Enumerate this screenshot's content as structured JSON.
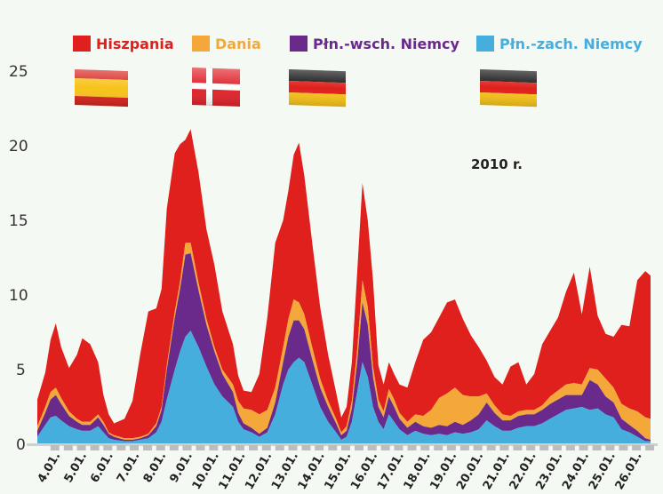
{
  "chart_data": {
    "type": "area",
    "stacked": true,
    "title": "",
    "annotation": "2010 r.",
    "ylim": [
      0,
      25
    ],
    "yticks": [
      "0",
      "5",
      "10",
      "15",
      "20",
      "25"
    ],
    "x_labels": [
      "4.01.",
      "5.01.",
      "6.01.",
      "7.01.",
      "8.01.",
      "9.01.",
      "10.01.",
      "11.01.",
      "12.01.",
      "13.01.",
      "14.01.",
      "15.01.",
      "16.01.",
      "17.01.",
      "18.01.",
      "19.01.",
      "20.01.",
      "21.01.",
      "22.01.",
      "23.01.",
      "24.01.",
      "25.01.",
      "26.01."
    ],
    "x_start": 3.3,
    "x_end": 26.5,
    "x": [
      3.3,
      3.6,
      3.8,
      4.0,
      4.2,
      4.5,
      4.8,
      5.0,
      5.3,
      5.6,
      5.8,
      6.0,
      6.2,
      6.6,
      6.9,
      7.2,
      7.5,
      7.8,
      8.0,
      8.2,
      8.5,
      8.7,
      8.9,
      9.1,
      9.4,
      9.7,
      10.0,
      10.3,
      10.7,
      10.9,
      11.1,
      11.4,
      11.7,
      12.0,
      12.3,
      12.6,
      12.8,
      13.0,
      13.2,
      13.4,
      13.7,
      14.0,
      14.3,
      14.6,
      14.8,
      15.0,
      15.2,
      15.4,
      15.6,
      15.8,
      16.0,
      16.2,
      16.4,
      16.6,
      16.8,
      17.0,
      17.3,
      17.6,
      17.9,
      18.2,
      18.5,
      18.8,
      19.1,
      19.4,
      19.7,
      20.0,
      20.3,
      20.6,
      20.9,
      21.2,
      21.5,
      21.8,
      22.1,
      22.4,
      22.7,
      23.0,
      23.3,
      23.6,
      23.9,
      24.2,
      24.5,
      24.8,
      25.1,
      25.4,
      25.7,
      26.0,
      26.3,
      26.5
    ],
    "series": [
      {
        "name": "Płn.-zach. Niemcy",
        "color": "#45aedd",
        "values": [
          0.5,
          1.3,
          1.8,
          1.9,
          1.6,
          1.2,
          1.0,
          0.9,
          0.9,
          1.2,
          0.8,
          0.4,
          0.3,
          0.2,
          0.2,
          0.3,
          0.4,
          0.8,
          1.5,
          3.0,
          5.0,
          6.2,
          7.2,
          7.6,
          6.5,
          5.2,
          4.0,
          3.2,
          2.5,
          1.5,
          1.0,
          0.8,
          0.5,
          0.8,
          2.0,
          4.0,
          5.0,
          5.5,
          5.8,
          5.5,
          4.0,
          2.5,
          1.5,
          0.8,
          0.3,
          0.5,
          1.5,
          3.5,
          5.5,
          4.5,
          2.5,
          1.5,
          1.0,
          2.0,
          1.5,
          1.0,
          0.6,
          0.9,
          0.7,
          0.6,
          0.7,
          0.6,
          0.8,
          0.7,
          0.8,
          1.0,
          1.6,
          1.2,
          0.9,
          0.9,
          1.1,
          1.2,
          1.2,
          1.4,
          1.7,
          2.0,
          2.3,
          2.4,
          2.5,
          2.3,
          2.4,
          2.0,
          1.8,
          1.0,
          0.8,
          0.5,
          0.2,
          0.2
        ]
      },
      {
        "name": "Płn.-wsch. Niemcy",
        "color": "#6a2a8c",
        "values": [
          0.4,
          0.8,
          1.2,
          1.4,
          1.1,
          0.7,
          0.5,
          0.4,
          0.4,
          0.6,
          0.5,
          0.3,
          0.2,
          0.1,
          0.1,
          0.1,
          0.2,
          0.4,
          0.8,
          2.0,
          3.5,
          4.2,
          5.5,
          5.2,
          3.8,
          2.8,
          2.2,
          1.5,
          1.0,
          0.6,
          0.4,
          0.3,
          0.2,
          0.3,
          0.8,
          1.5,
          2.2,
          2.8,
          2.5,
          2.2,
          1.7,
          1.3,
          1.0,
          0.6,
          0.3,
          0.4,
          0.9,
          2.0,
          4.0,
          3.5,
          2.0,
          1.0,
          0.8,
          1.2,
          1.0,
          0.7,
          0.5,
          0.6,
          0.5,
          0.5,
          0.6,
          0.6,
          0.7,
          0.6,
          0.8,
          1.0,
          1.2,
          0.9,
          0.7,
          0.7,
          0.8,
          0.8,
          0.8,
          0.9,
          1.0,
          1.0,
          1.0,
          0.9,
          0.8,
          2.0,
          1.6,
          1.2,
          1.0,
          0.7,
          0.5,
          0.4,
          0.2,
          0.1
        ]
      },
      {
        "name": "Dania",
        "color": "#f5a83a",
        "values": [
          0.3,
          0.4,
          0.5,
          0.5,
          0.4,
          0.3,
          0.2,
          0.2,
          0.2,
          0.2,
          0.2,
          0.1,
          0.1,
          0.1,
          0.1,
          0.1,
          0.1,
          0.2,
          0.2,
          0.3,
          0.4,
          0.5,
          0.8,
          0.7,
          0.5,
          0.4,
          0.3,
          0.3,
          0.5,
          0.8,
          1.0,
          1.2,
          1.3,
          1.2,
          1.0,
          1.0,
          1.2,
          1.4,
          1.2,
          1.0,
          0.8,
          0.6,
          0.4,
          0.3,
          0.2,
          0.3,
          0.5,
          0.8,
          1.5,
          1.2,
          0.7,
          0.5,
          0.4,
          0.5,
          0.5,
          0.4,
          0.4,
          0.5,
          0.7,
          1.2,
          1.8,
          2.2,
          2.3,
          2.0,
          1.6,
          1.2,
          0.6,
          0.5,
          0.4,
          0.3,
          0.3,
          0.3,
          0.3,
          0.3,
          0.5,
          0.6,
          0.7,
          0.8,
          0.7,
          0.8,
          1.0,
          1.2,
          1.0,
          1.0,
          1.1,
          1.3,
          1.4,
          1.4
        ]
      },
      {
        "name": "Hiszpania",
        "color": "#e0201c",
        "values": [
          1.8,
          2.3,
          3.5,
          4.3,
          3.4,
          2.9,
          4.3,
          5.6,
          5.2,
          3.5,
          1.8,
          1.2,
          0.8,
          1.3,
          2.5,
          5.6,
          8.2,
          7.7,
          7.9,
          10.5,
          10.6,
          9.2,
          6.9,
          7.6,
          7.4,
          6.0,
          5.5,
          3.9,
          2.7,
          1.7,
          1.2,
          1.2,
          2.7,
          6.2,
          9.7,
          8.5,
          8.6,
          9.7,
          10.7,
          9.3,
          7.0,
          4.8,
          3.1,
          1.8,
          1.0,
          1.3,
          2.6,
          5.2,
          6.5,
          5.8,
          5.8,
          2.3,
          1.8,
          1.8,
          1.7,
          1.9,
          2.3,
          3.5,
          5.1,
          5.2,
          5.4,
          6.1,
          5.9,
          5.1,
          4.1,
          3.3,
          2.2,
          1.9,
          2.0,
          3.3,
          3.3,
          1.7,
          2.4,
          4.1,
          4.4,
          4.9,
          6.2,
          7.4,
          4.7,
          6.8,
          3.6,
          3.0,
          3.4,
          5.3,
          5.5,
          8.8,
          9.8,
          9.6
        ]
      }
    ],
    "legend": "top",
    "grid": false
  }
}
